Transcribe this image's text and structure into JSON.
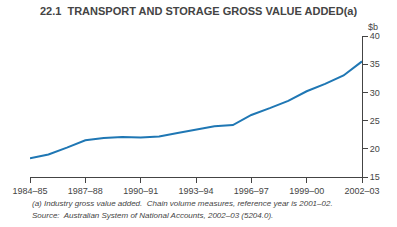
{
  "chart_data": {
    "type": "line",
    "title": "22.1  TRANSPORT AND STORAGE GROSS VALUE ADDED(a)",
    "ylabel": "$b",
    "annotations": [
      "(a) Industry gross value added.  Chain volume measures, reference year is 2001–02.",
      "Source:  Australian System of National Accounts, 2002–03 (5204.0)."
    ],
    "categories": [
      "1984–85",
      null,
      null,
      "1987–88",
      null,
      null,
      "1990–91",
      null,
      null,
      "1993–94",
      null,
      null,
      "1996–97",
      null,
      null,
      "1999–00",
      null,
      null,
      "2002–03"
    ],
    "values": [
      18.3,
      19.0,
      20.2,
      21.5,
      21.9,
      22.1,
      22.0,
      22.2,
      22.8,
      23.4,
      24.0,
      24.2,
      26.0,
      27.2,
      28.5,
      30.2,
      31.5,
      33.0,
      35.5
    ],
    "ylim": [
      15,
      40
    ],
    "yticks": [
      15,
      20,
      25,
      30,
      35,
      40
    ],
    "grid": false
  }
}
